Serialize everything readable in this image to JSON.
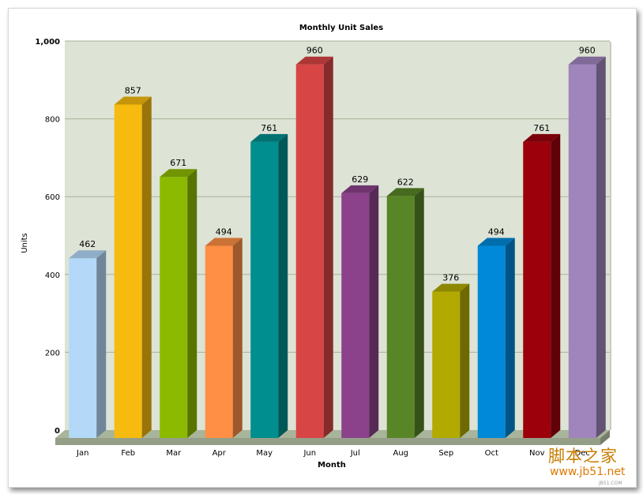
{
  "chart_data": {
    "type": "bar",
    "title": "Monthly Unit Sales",
    "xlabel": "Month",
    "ylabel": "Units",
    "ylim": [
      0,
      1000
    ],
    "yticks": [
      "0",
      "200",
      "400",
      "600",
      "800",
      "1,000"
    ],
    "categories": [
      "Jan",
      "Feb",
      "Mar",
      "Apr",
      "May",
      "Jun",
      "Jul",
      "Aug",
      "Sep",
      "Oct",
      "Nov",
      "Dec"
    ],
    "values": [
      462,
      857,
      671,
      494,
      761,
      960,
      629,
      622,
      376,
      494,
      761,
      960
    ],
    "value_labels": [
      "462",
      "857",
      "671",
      "494",
      "761",
      "960",
      "629",
      "622",
      "376",
      "494",
      "761",
      "960"
    ],
    "colors": [
      "#b3d8f8",
      "#f6bb0e",
      "#8cba00",
      "#fe8f45",
      "#008e8e",
      "#d84545",
      "#8c428b",
      "#588526",
      "#b2aa00",
      "#0089d8",
      "#9b000b",
      "#a085bd"
    ],
    "grid": true,
    "plot_background": "#dde3d5",
    "floor_color": "#a9b59b"
  },
  "watermark": {
    "text": "脚本之家",
    "url": "www.jb51.net",
    "small": "JB51.COM"
  }
}
